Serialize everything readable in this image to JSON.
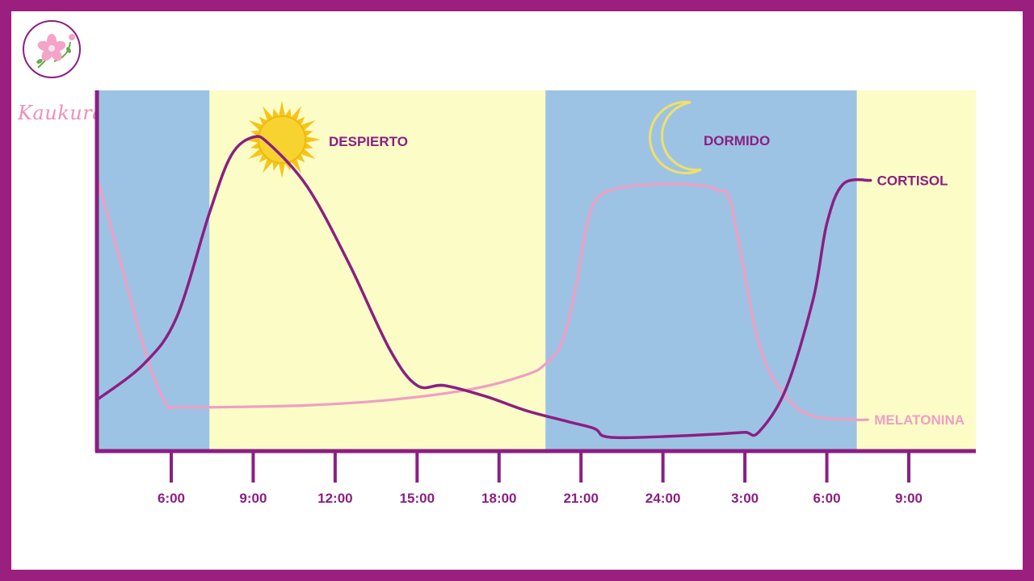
{
  "brand": {
    "name": "Kaukura"
  },
  "colors": {
    "frame": "#9a1f7f",
    "night_band": "#9dc3e4",
    "day_band": "#fcfcc7",
    "cortisol": "#8b1f82",
    "melatonin": "#ef9fc3",
    "axis": "#8b1f82",
    "sun": "#f5c518",
    "moon": "#f0e068"
  },
  "labels": {
    "awake": "DESPIERTO",
    "asleep": "DORMIDO"
  },
  "icons": {
    "sun": "sun-icon",
    "moon": "crescent-moon-icon",
    "logo": "cherry-blossom-icon"
  },
  "chart_data": {
    "type": "line",
    "x_unit": "hours (continuous, 24h cycle wrapping past midnight)",
    "tick_labels": [
      "6:00",
      "9:00",
      "12:00",
      "15:00",
      "18:00",
      "21:00",
      "24:00",
      "3:00",
      "6:00",
      "9:00"
    ],
    "tick_hours": [
      6,
      9,
      12,
      15,
      18,
      21,
      24,
      27,
      30,
      33
    ],
    "xlim": [
      3.2,
      35.5
    ],
    "ylim": [
      0,
      100
    ],
    "y_axis_labels": false,
    "grid": false,
    "bands": [
      {
        "kind": "night",
        "from": 3.2,
        "to": 7.4
      },
      {
        "kind": "day",
        "from": 7.4,
        "to": 19.7
      },
      {
        "kind": "night",
        "from": 19.7,
        "to": 31.1
      },
      {
        "kind": "day",
        "from": 31.1,
        "to": 35.5
      }
    ],
    "series": [
      {
        "name": "CORTISOL",
        "x": [
          3.2,
          5.0,
          6.2,
          7.4,
          8.2,
          9.0,
          9.6,
          11.0,
          12.5,
          14.0,
          15.0,
          16.0,
          17.5,
          19.0,
          20.5,
          21.5,
          21.8,
          22.5,
          24.0,
          26.0,
          27.0,
          27.5,
          28.5,
          29.5,
          30.0,
          30.6,
          31.6
        ],
        "y": [
          14,
          24,
          37,
          66,
          82,
          87,
          85,
          73,
          52,
          28,
          18,
          18,
          15,
          11,
          8,
          6,
          4,
          3.5,
          3.8,
          4.5,
          5,
          5,
          17,
          42,
          63,
          74,
          75
        ]
      },
      {
        "name": "MELATONINA",
        "x": [
          3.2,
          4.3,
          5.1,
          5.8,
          6.2,
          8.0,
          11.0,
          14.0,
          17.0,
          19.0,
          19.7,
          20.3,
          20.8,
          21.2,
          21.6,
          22.5,
          24.0,
          25.5,
          26.0,
          26.5,
          27.5,
          28.5,
          29.5,
          31.0,
          31.5
        ],
        "y": [
          76,
          48,
          26,
          13,
          12,
          12,
          12.5,
          14,
          17,
          21,
          24,
          30,
          45,
          62,
          70,
          73,
          74,
          73.5,
          72,
          68,
          30,
          15,
          9.5,
          8.5,
          8.5
        ]
      }
    ]
  }
}
